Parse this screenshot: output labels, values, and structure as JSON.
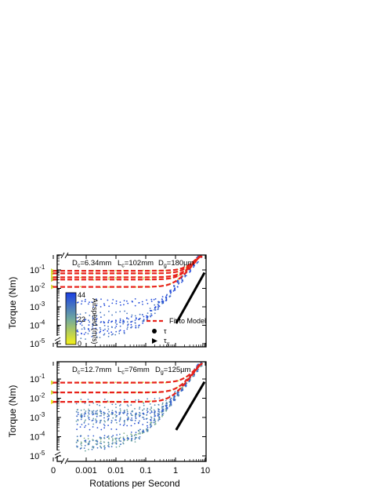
{
  "figure": {
    "xlabel": "Rotations per Second",
    "ylabel": "Torque (Nm)",
    "x_tick_labels": [
      "0",
      "0.001",
      "0.01",
      "0.1",
      "1",
      "10"
    ],
    "y_tick_labels": [
      "10",
      "10",
      "10",
      "10",
      "10"
    ],
    "y_tick_exponents": [
      "-1",
      "-2",
      "-3",
      "-4",
      "-5"
    ]
  },
  "colors": {
    "fit_line": "#e8221b",
    "slow_air": "#f6f218",
    "mid_air": "#6fa8a0",
    "fast_air": "#1b3fe3",
    "power_law": "#000000"
  },
  "colorbar": {
    "label": "Airspeed (m/s)",
    "max": "44",
    "mid": "22",
    "min": "0"
  },
  "legend": {
    "fit": "Fit to Model",
    "tau": "τ",
    "tau_y": "τ",
    "tau_y_sub": "y"
  },
  "top_panel": {
    "dc": {
      "main": "D",
      "sub": "c",
      "rest": "=6.34mm"
    },
    "lc": {
      "main": "L",
      "sub": "c",
      "rest": "=102mm"
    },
    "dg": {
      "main": "D",
      "sub": "g",
      "rest": "=180µm"
    }
  },
  "bottom_panel": {
    "dc": {
      "main": "D",
      "sub": "c",
      "rest": "=12.7mm"
    },
    "lc": {
      "main": "L",
      "sub": "c",
      "rest": "=76mm"
    },
    "dg": {
      "main": "D",
      "sub": "g",
      "rest": "=125µm"
    }
  },
  "chart_data": [
    {
      "type": "scatter",
      "xlabel": "Rotations per Second",
      "ylabel": "Torque (Nm)",
      "x_scale": "log (with broken axis at 0)",
      "y_scale": "log",
      "xlim": [
        0.0001,
        10
      ],
      "ylim": [
        6e-06,
        0.2
      ],
      "fit_plateaus": [
        0.09,
        0.065,
        0.04,
        0.03,
        0.012
      ],
      "series": [
        {
          "color_scale_airspeed": [
            0,
            44
          ]
        }
      ]
    },
    {
      "type": "scatter",
      "xlabel": "Rotations per Second",
      "ylabel": "Torque (Nm)",
      "x_scale": "log (with broken axis at 0)",
      "y_scale": "log",
      "xlim": [
        0.0001,
        10
      ],
      "ylim": [
        6e-06,
        0.2
      ],
      "fit_plateaus": [
        0.065,
        0.02,
        0.0065
      ]
    }
  ]
}
